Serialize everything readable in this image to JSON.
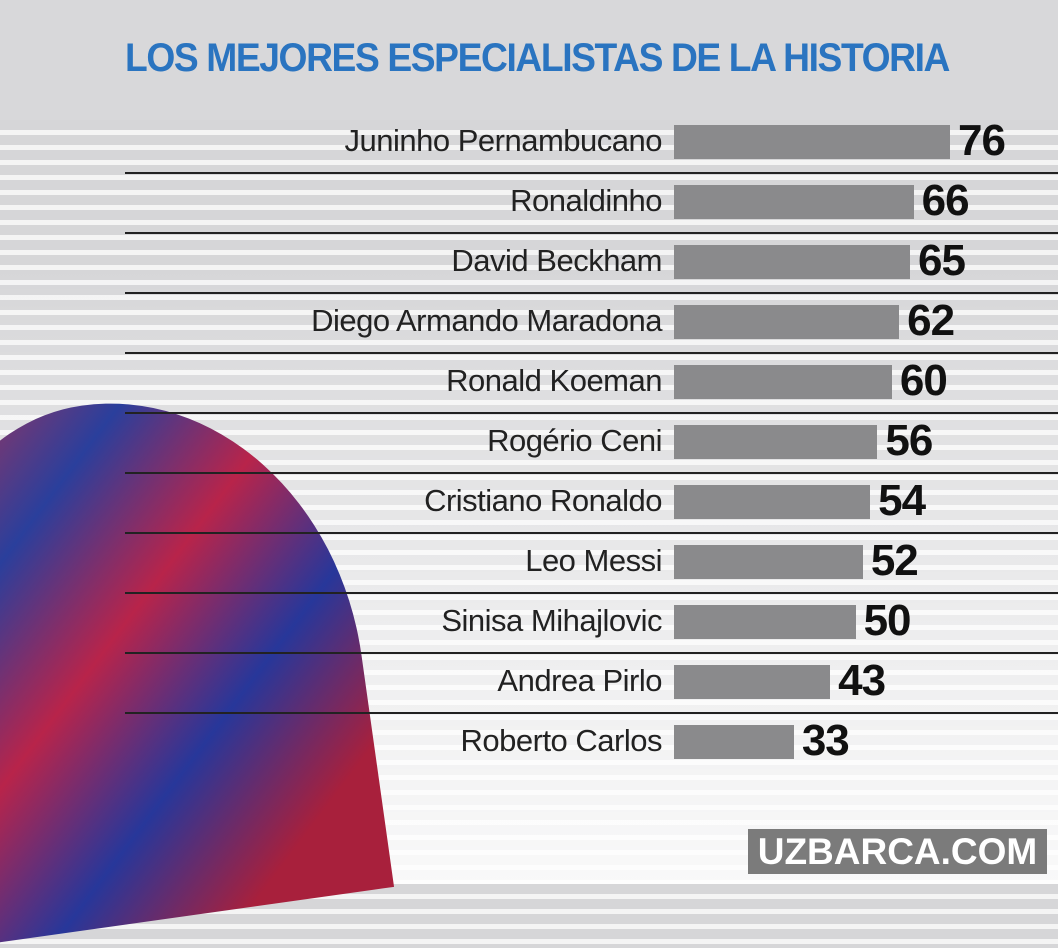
{
  "chart_data": {
    "type": "bar",
    "orientation": "horizontal",
    "title": "LOS MEJORES ESPECIALISTAS DE LA HISTORIA",
    "categories": [
      "Juninho Pernambucano",
      "Ronaldinho",
      "David Beckham",
      "Diego Armando Maradona",
      "Ronald Koeman",
      "Rogério Ceni",
      "Cristiano Ronaldo",
      "Leo Messi",
      "Sinisa Mihajlovic",
      "Andrea Pirlo",
      "Roberto Carlos"
    ],
    "values": [
      76,
      66,
      65,
      62,
      60,
      56,
      54,
      52,
      50,
      43,
      33
    ],
    "bar_color": "#8a8a8c",
    "title_color": "#2a74c0",
    "data_labels": true,
    "grid": false
  },
  "watermark": "UZBARCA.COM"
}
